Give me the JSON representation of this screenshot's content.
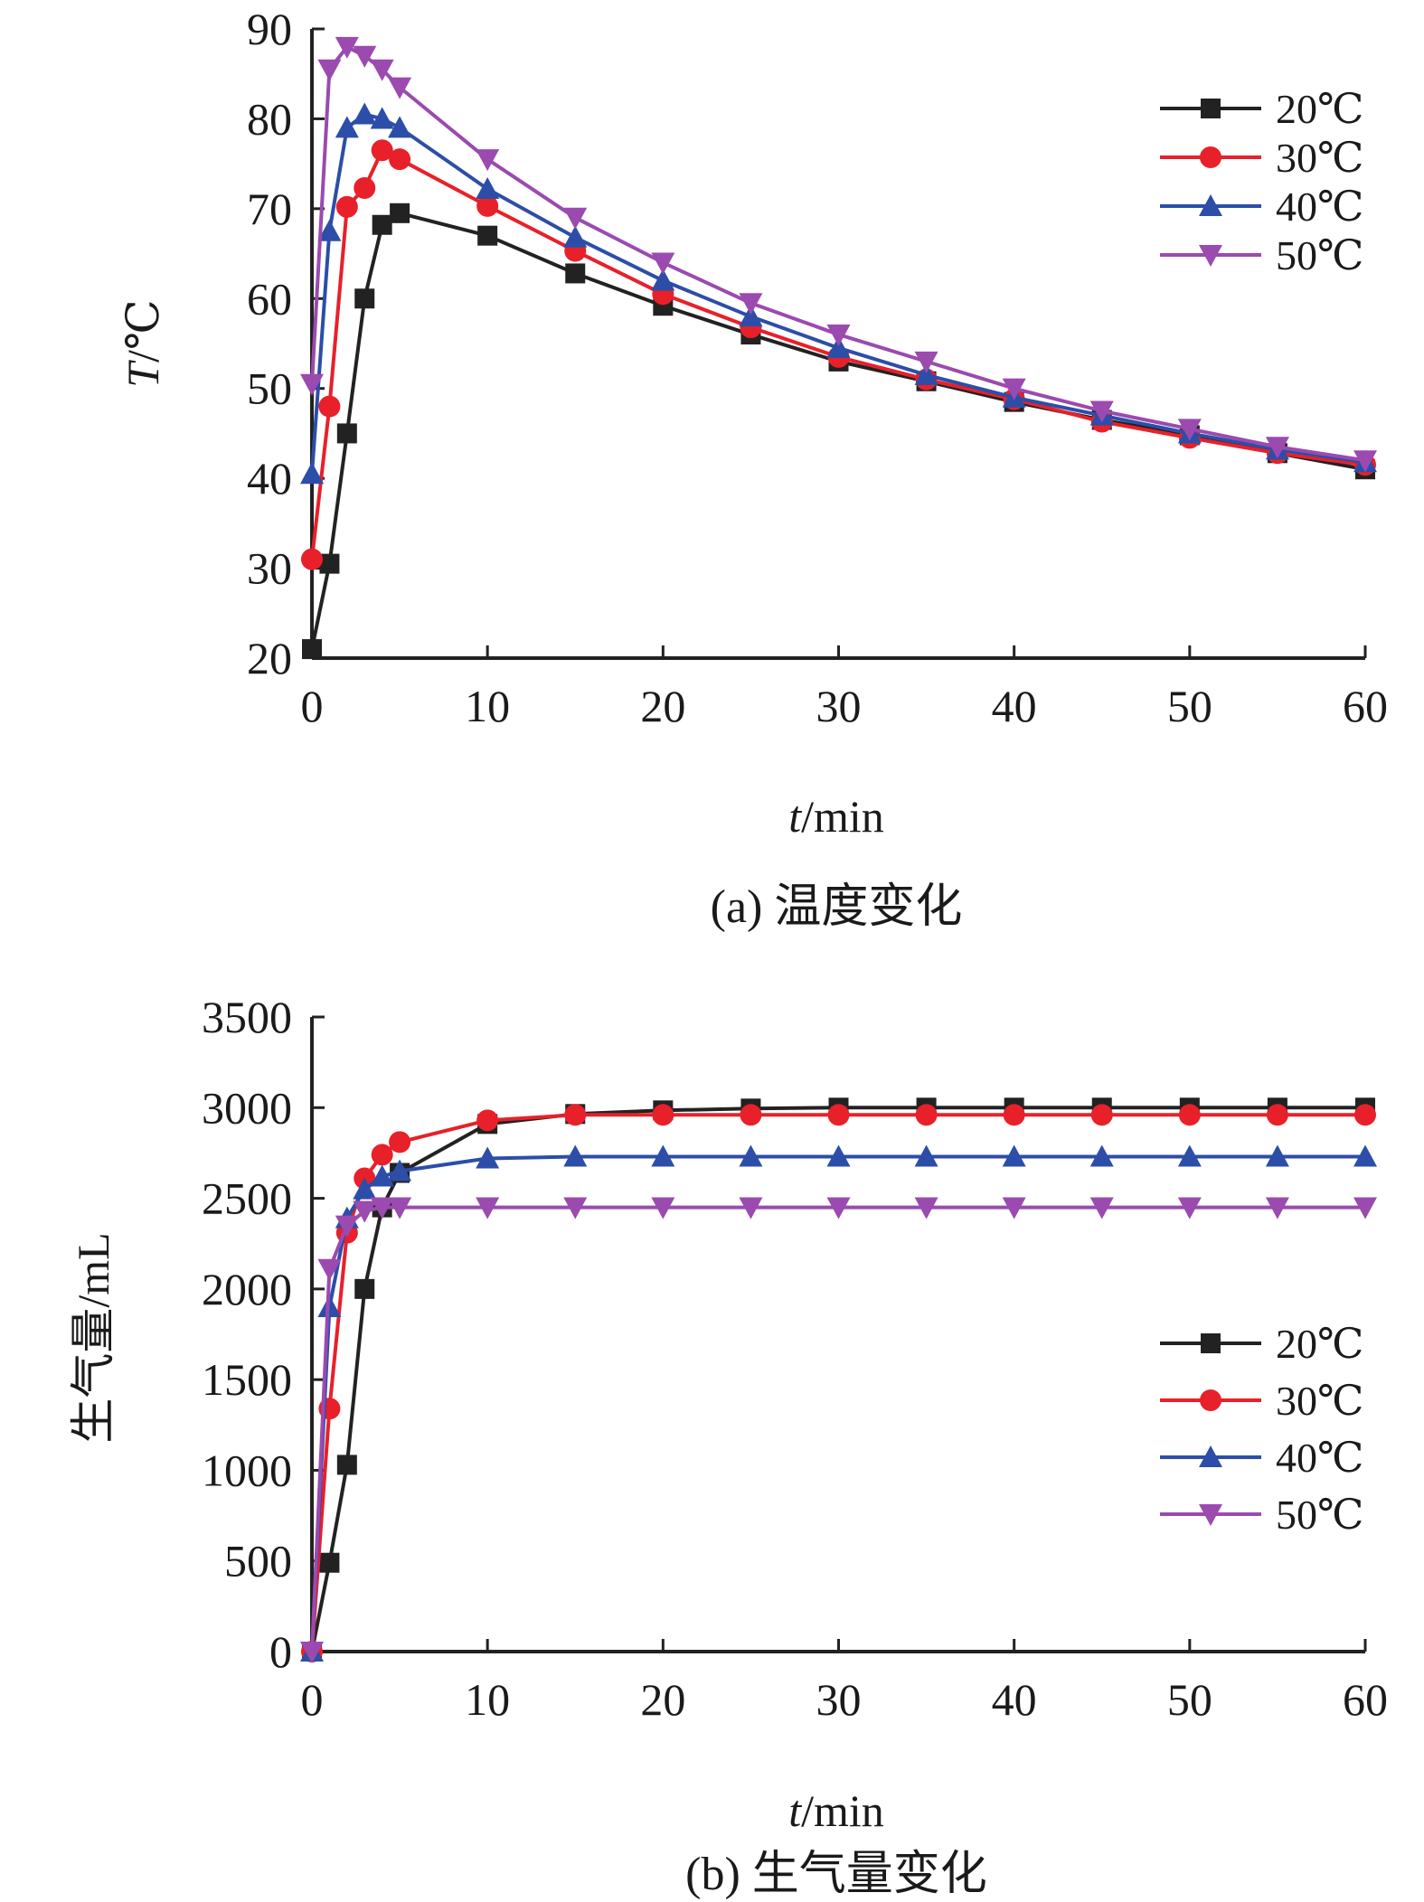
{
  "chart_data": [
    {
      "type": "line",
      "caption": "(a) 温度变化",
      "xlabel_italic": "t",
      "xlabel_rest": "/min",
      "ylabel_italic": "T",
      "ylabel_rest": "/℃",
      "xlim": [
        0,
        60
      ],
      "ylim": [
        20,
        90
      ],
      "x_ticks": [
        0,
        10,
        20,
        30,
        40,
        50,
        60
      ],
      "y_ticks": [
        20,
        30,
        40,
        50,
        60,
        70,
        80,
        90
      ],
      "grid": false,
      "legend_position": "top-right",
      "x": [
        0,
        1,
        2,
        3,
        4,
        5,
        10,
        15,
        20,
        25,
        30,
        35,
        40,
        45,
        50,
        55,
        60
      ],
      "series": [
        {
          "name": "20℃",
          "color": "#222222",
          "marker": "square",
          "values": [
            21,
            30.5,
            45,
            60,
            68.2,
            69.5,
            67,
            62.8,
            59.2,
            56,
            53,
            50.8,
            48.5,
            46.5,
            44.8,
            42.8,
            41
          ]
        },
        {
          "name": "30℃",
          "color": "#e8202a",
          "marker": "circle",
          "values": [
            31,
            48,
            70.2,
            72.3,
            76.5,
            75.5,
            70.3,
            65.3,
            60.5,
            56.8,
            53.5,
            51,
            48.8,
            46.3,
            44.5,
            42.8,
            41.5
          ]
        },
        {
          "name": "40℃",
          "color": "#2c4ea8",
          "marker": "triangle-up",
          "values": [
            40.5,
            67.5,
            79,
            80.5,
            80,
            79,
            72.2,
            66.8,
            62,
            58,
            54.5,
            51.5,
            49,
            47,
            45,
            43.2,
            41.8
          ]
        },
        {
          "name": "50℃",
          "color": "#9b4ab0",
          "marker": "triangle-down",
          "values": [
            50.5,
            85.5,
            88,
            87,
            85.5,
            83.5,
            75.5,
            69,
            64,
            59.5,
            56,
            53,
            50,
            47.5,
            45.5,
            43.5,
            42
          ]
        }
      ]
    },
    {
      "type": "line",
      "caption": "(b) 生气量变化",
      "xlabel_italic": "t",
      "xlabel_rest": "/min",
      "ylabel": "生气量/mL",
      "xlim": [
        0,
        60
      ],
      "ylim": [
        0,
        3500
      ],
      "x_ticks": [
        0,
        10,
        20,
        30,
        40,
        50,
        60
      ],
      "y_ticks": [
        0,
        500,
        1000,
        1500,
        2000,
        2500,
        3000,
        3500
      ],
      "grid": false,
      "legend_position": "right",
      "x": [
        0,
        1,
        2,
        3,
        4,
        5,
        10,
        15,
        20,
        25,
        30,
        35,
        40,
        45,
        50,
        55,
        60
      ],
      "series": [
        {
          "name": "20℃",
          "color": "#222222",
          "marker": "square",
          "values": [
            0,
            490,
            1030,
            2000,
            2450,
            2640,
            2910,
            2965,
            2985,
            2995,
            3000,
            3000,
            3000,
            3000,
            3000,
            3000,
            3000
          ]
        },
        {
          "name": "30℃",
          "color": "#e8202a",
          "marker": "circle",
          "values": [
            0,
            1340,
            2310,
            2610,
            2740,
            2810,
            2930,
            2960,
            2960,
            2960,
            2960,
            2960,
            2960,
            2960,
            2960,
            2960,
            2960
          ]
        },
        {
          "name": "40℃",
          "color": "#2c4ea8",
          "marker": "triangle-up",
          "values": [
            0,
            1900,
            2390,
            2550,
            2620,
            2650,
            2720,
            2730,
            2730,
            2730,
            2730,
            2730,
            2730,
            2730,
            2730,
            2730,
            2730
          ]
        },
        {
          "name": "50℃",
          "color": "#9b4ab0",
          "marker": "triangle-down",
          "values": [
            0,
            2110,
            2350,
            2430,
            2450,
            2450,
            2450,
            2450,
            2450,
            2450,
            2450,
            2450,
            2450,
            2450,
            2450,
            2450,
            2450
          ]
        }
      ]
    }
  ]
}
